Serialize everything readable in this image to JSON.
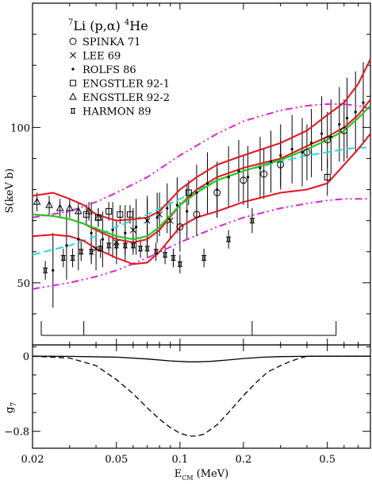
{
  "chart_data": [
    {
      "type": "scatter",
      "title_parts": {
        "pre": "7",
        "mid": "Li (p,",
        "alpha": "α",
        "post": ") ",
        "sup2": "4",
        "end": "He"
      },
      "ylabel": "S(keV b)",
      "xscale": "log",
      "xlim": [
        0.02,
        0.8
      ],
      "ylim": [
        30,
        140
      ],
      "yticks": [
        50,
        100
      ],
      "grid": false,
      "legend_placement": "top-left",
      "legend": [
        {
          "name": "SPINKA 71",
          "marker": "circle"
        },
        {
          "name": "LEE 69",
          "marker": "cross"
        },
        {
          "name": "ROLFS 86",
          "marker": "dot"
        },
        {
          "name": "ENGSTLER 92-1",
          "marker": "square"
        },
        {
          "name": "ENGSTLER 92-2",
          "marker": "triangle"
        },
        {
          "name": "HARMON 89",
          "marker": "hbar"
        }
      ],
      "colors": {
        "band": "#e8101c",
        "fit": "#22cc22",
        "dashed": "#22dddd",
        "dashdot": "#dd22dd",
        "data": "#000000"
      },
      "curves": {
        "band_upper": {
          "x": [
            0.02,
            0.025,
            0.03,
            0.035,
            0.04,
            0.05,
            0.06,
            0.07,
            0.08,
            0.1,
            0.12,
            0.15,
            0.2,
            0.3,
            0.4,
            0.5,
            0.6,
            0.7,
            0.8
          ],
          "y": [
            78,
            79,
            77,
            75,
            72,
            70,
            70.5,
            71,
            73,
            80,
            84,
            88,
            91,
            95,
            99,
            104,
            108,
            114,
            122
          ]
        },
        "band_middle": {
          "x": [
            0.02,
            0.025,
            0.03,
            0.035,
            0.04,
            0.05,
            0.06,
            0.07,
            0.08,
            0.1,
            0.12,
            0.15,
            0.2,
            0.3,
            0.4,
            0.5,
            0.6,
            0.7,
            0.8
          ],
          "y": [
            72,
            71.5,
            70.5,
            69,
            67,
            64,
            63,
            64,
            67,
            75,
            80,
            84,
            87,
            90,
            94,
            97,
            100,
            104,
            109
          ]
        },
        "band_lower": {
          "x": [
            0.02,
            0.025,
            0.03,
            0.035,
            0.04,
            0.05,
            0.06,
            0.07,
            0.08,
            0.1,
            0.12,
            0.15,
            0.2,
            0.3,
            0.4,
            0.5,
            0.6,
            0.7,
            0.8
          ],
          "y": [
            65,
            65.5,
            65,
            63.5,
            61,
            58,
            56,
            56.5,
            60,
            68,
            71,
            73,
            76,
            79,
            80,
            82,
            88,
            93,
            98
          ]
        },
        "fit": {
          "x": [
            0.02,
            0.025,
            0.03,
            0.035,
            0.04,
            0.05,
            0.06,
            0.07,
            0.08,
            0.1,
            0.12,
            0.15,
            0.2,
            0.3,
            0.4,
            0.5,
            0.6,
            0.7,
            0.8
          ],
          "y": [
            72,
            71.5,
            70.5,
            69,
            67.5,
            65,
            64,
            65,
            68,
            75,
            79,
            83,
            86,
            89.5,
            93,
            96,
            99,
            103,
            107
          ]
        },
        "dashed": {
          "x": [
            0.02,
            0.03,
            0.04,
            0.05,
            0.07,
            0.1,
            0.15,
            0.2,
            0.3,
            0.4,
            0.5,
            0.6,
            0.7,
            0.8
          ],
          "y": [
            59,
            62,
            65,
            68,
            72,
            77,
            83,
            86,
            89,
            91,
            92,
            93,
            93.5,
            93.5
          ]
        },
        "dashdot_upper": {
          "x": [
            0.02,
            0.03,
            0.04,
            0.05,
            0.07,
            0.1,
            0.15,
            0.2,
            0.3,
            0.4,
            0.5,
            0.6,
            0.7,
            0.8
          ],
          "y": [
            71,
            73,
            76,
            79,
            84,
            91,
            98,
            102,
            105.5,
            107,
            107.5,
            107.5,
            107,
            106
          ]
        },
        "dashdot_lower": {
          "x": [
            0.02,
            0.03,
            0.04,
            0.05,
            0.07,
            0.1,
            0.15,
            0.2,
            0.3,
            0.4,
            0.5,
            0.6,
            0.7,
            0.8
          ],
          "y": [
            48,
            50,
            52,
            54,
            58,
            63,
            68,
            71,
            74,
            75.5,
            76.5,
            77,
            77,
            77
          ]
        }
      },
      "series": [
        {
          "name": "SPINKA 71",
          "points": [
            {
              "x": 0.1,
              "y": 68,
              "err": 8
            },
            {
              "x": 0.12,
              "y": 72,
              "err": 7
            },
            {
              "x": 0.15,
              "y": 79,
              "err": 8
            },
            {
              "x": 0.2,
              "y": 83,
              "err": 8
            },
            {
              "x": 0.25,
              "y": 85,
              "err": 8
            },
            {
              "x": 0.3,
              "y": 88,
              "err": 8
            },
            {
              "x": 0.4,
              "y": 92,
              "err": 9
            },
            {
              "x": 0.5,
              "y": 96,
              "err": 9
            },
            {
              "x": 0.6,
              "y": 99,
              "err": 10
            }
          ]
        },
        {
          "name": "LEE 69",
          "points": [
            {
              "x": 0.04,
              "y": 61,
              "err": 7
            },
            {
              "x": 0.05,
              "y": 63,
              "err": 7
            },
            {
              "x": 0.06,
              "y": 67,
              "err": 7
            },
            {
              "x": 0.07,
              "y": 70,
              "err": 7
            },
            {
              "x": 0.08,
              "y": 72,
              "err": 7
            },
            {
              "x": 0.09,
              "y": 70,
              "err": 6
            }
          ]
        },
        {
          "name": "ROLFS 86",
          "points": [
            {
              "x": 0.025,
              "y": 54,
              "err": 12
            },
            {
              "x": 0.029,
              "y": 62,
              "err": 11
            },
            {
              "x": 0.033,
              "y": 64,
              "err": 10
            },
            {
              "x": 0.038,
              "y": 66,
              "err": 10
            },
            {
              "x": 0.043,
              "y": 64,
              "err": 9
            },
            {
              "x": 0.048,
              "y": 67,
              "err": 9
            },
            {
              "x": 0.055,
              "y": 66,
              "err": 9
            },
            {
              "x": 0.062,
              "y": 68,
              "err": 9
            },
            {
              "x": 0.07,
              "y": 70,
              "err": 8
            },
            {
              "x": 0.078,
              "y": 71,
              "err": 8
            },
            {
              "x": 0.087,
              "y": 74,
              "err": 8
            },
            {
              "x": 0.097,
              "y": 75,
              "err": 9
            },
            {
              "x": 0.108,
              "y": 73,
              "err": 9
            },
            {
              "x": 0.12,
              "y": 79,
              "err": 9
            },
            {
              "x": 0.135,
              "y": 82,
              "err": 10
            },
            {
              "x": 0.15,
              "y": 80,
              "err": 9
            },
            {
              "x": 0.17,
              "y": 84,
              "err": 10
            },
            {
              "x": 0.19,
              "y": 86,
              "err": 10
            },
            {
              "x": 0.21,
              "y": 84,
              "err": 10
            },
            {
              "x": 0.24,
              "y": 87,
              "err": 10
            },
            {
              "x": 0.27,
              "y": 89,
              "err": 10
            },
            {
              "x": 0.3,
              "y": 91,
              "err": 10
            },
            {
              "x": 0.34,
              "y": 93,
              "err": 11
            },
            {
              "x": 0.38,
              "y": 92,
              "err": 11
            },
            {
              "x": 0.42,
              "y": 95,
              "err": 11
            },
            {
              "x": 0.47,
              "y": 98,
              "err": 12
            },
            {
              "x": 0.52,
              "y": 97,
              "err": 12
            },
            {
              "x": 0.57,
              "y": 101,
              "err": 12
            },
            {
              "x": 0.62,
              "y": 103,
              "err": 13
            },
            {
              "x": 0.68,
              "y": 105,
              "err": 13
            },
            {
              "x": 0.74,
              "y": 108,
              "err": 13
            }
          ]
        },
        {
          "name": "ENGSTLER 92-1",
          "points": [
            {
              "x": 0.036,
              "y": 72,
              "err": 3
            },
            {
              "x": 0.041,
              "y": 71,
              "err": 3
            },
            {
              "x": 0.046,
              "y": 73,
              "err": 3
            },
            {
              "x": 0.052,
              "y": 72,
              "err": 3
            },
            {
              "x": 0.058,
              "y": 72,
              "err": 3
            },
            {
              "x": 0.11,
              "y": 79,
              "err": 4
            },
            {
              "x": 0.5,
              "y": 84,
              "err": 6
            }
          ]
        },
        {
          "name": "ENGSTLER 92-2",
          "points": [
            {
              "x": 0.021,
              "y": 76,
              "err": 3
            },
            {
              "x": 0.024,
              "y": 75,
              "err": 3
            },
            {
              "x": 0.027,
              "y": 74,
              "err": 3
            },
            {
              "x": 0.03,
              "y": 74,
              "err": 3
            },
            {
              "x": 0.033,
              "y": 73,
              "err": 3
            },
            {
              "x": 0.037,
              "y": 73,
              "err": 3
            },
            {
              "x": 0.041,
              "y": 71,
              "err": 3
            }
          ]
        },
        {
          "name": "HARMON 89",
          "points": [
            {
              "x": 0.023,
              "y": 54,
              "err": 3
            },
            {
              "x": 0.028,
              "y": 58,
              "err": 3
            },
            {
              "x": 0.031,
              "y": 58,
              "err": 3
            },
            {
              "x": 0.034,
              "y": 60,
              "err": 3
            },
            {
              "x": 0.038,
              "y": 60,
              "err": 3
            },
            {
              "x": 0.042,
              "y": 61,
              "err": 3
            },
            {
              "x": 0.046,
              "y": 62,
              "err": 3
            },
            {
              "x": 0.05,
              "y": 62,
              "err": 3
            },
            {
              "x": 0.055,
              "y": 62,
              "err": 3
            },
            {
              "x": 0.06,
              "y": 62,
              "err": 3
            },
            {
              "x": 0.065,
              "y": 61,
              "err": 3
            },
            {
              "x": 0.07,
              "y": 61,
              "err": 3
            },
            {
              "x": 0.077,
              "y": 60,
              "err": 3
            },
            {
              "x": 0.085,
              "y": 59,
              "err": 3
            },
            {
              "x": 0.093,
              "y": 58,
              "err": 3
            },
            {
              "x": 0.1,
              "y": 56,
              "err": 3
            },
            {
              "x": 0.13,
              "y": 58,
              "err": 3
            },
            {
              "x": 0.17,
              "y": 64,
              "err": 3
            },
            {
              "x": 0.22,
              "y": 70,
              "err": 4
            }
          ]
        }
      ],
      "bracket": {
        "x": [
          0.022,
          0.035,
          0.22,
          0.55
        ],
        "y": 30
      }
    },
    {
      "type": "line",
      "ylabel_base": "g",
      "ylabel_sub": "7",
      "xlabel_base": "E",
      "xlabel_sub": "CM",
      "xlabel_unit": " (MeV)",
      "xscale": "log",
      "xlim": [
        0.02,
        0.8
      ],
      "ylim": [
        -0.98,
        0.12
      ],
      "yticks": [
        0,
        -0.8
      ],
      "ytick_labels": [
        "0",
        "−0.8"
      ],
      "xticks": [
        0.02,
        0.05,
        0.1,
        0.2,
        0.5
      ],
      "xtick_labels": [
        "0.02",
        "0.05",
        "0.1",
        "0.2",
        "0.5"
      ],
      "series": [
        {
          "style": "solid",
          "x": [
            0.02,
            0.03,
            0.05,
            0.07,
            0.09,
            0.11,
            0.12,
            0.14,
            0.17,
            0.2,
            0.25,
            0.3,
            0.4,
            0.5,
            0.8
          ],
          "y": [
            0,
            -0.002,
            -0.01,
            -0.03,
            -0.05,
            -0.06,
            -0.06,
            -0.055,
            -0.04,
            -0.025,
            -0.01,
            -0.004,
            -0.001,
            0,
            0
          ]
        },
        {
          "style": "dashed",
          "x": [
            0.02,
            0.03,
            0.04,
            0.05,
            0.06,
            0.07,
            0.08,
            0.09,
            0.1,
            0.11,
            0.12,
            0.13,
            0.15,
            0.17,
            0.2,
            0.23,
            0.26,
            0.3,
            0.33,
            0.36,
            0.4,
            0.8
          ],
          "y": [
            0,
            -0.02,
            -0.1,
            -0.25,
            -0.4,
            -0.55,
            -0.67,
            -0.76,
            -0.82,
            -0.85,
            -0.85,
            -0.83,
            -0.73,
            -0.6,
            -0.42,
            -0.28,
            -0.17,
            -0.1,
            -0.06,
            -0.03,
            0,
            0
          ]
        }
      ]
    }
  ]
}
